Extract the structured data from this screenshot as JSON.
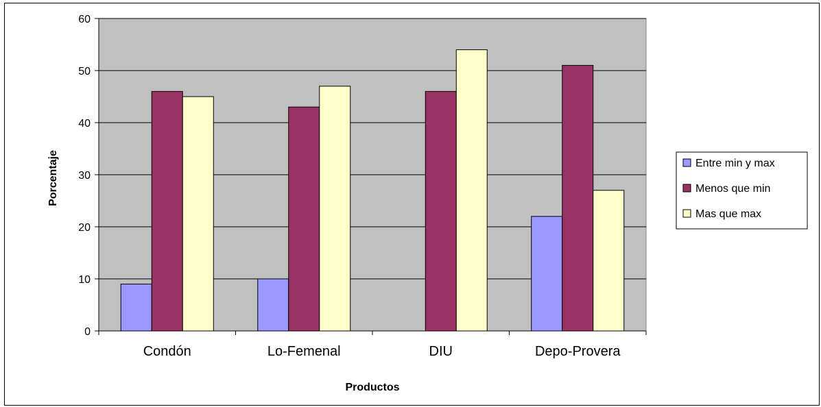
{
  "chart_data": {
    "type": "bar",
    "title": "",
    "xlabel": "Productos",
    "ylabel": "Porcentaje",
    "ylim": [
      0,
      60
    ],
    "yticks": [
      0,
      10,
      20,
      30,
      40,
      50,
      60
    ],
    "grid": true,
    "legend_position": "right",
    "categories": [
      "Condón",
      "Lo-Femenal",
      "DIU",
      "Depo-Provera"
    ],
    "series": [
      {
        "name": "Entre min y max",
        "color": "#9999ff",
        "values": [
          9,
          10,
          0,
          22
        ]
      },
      {
        "name": "Menos que min",
        "color": "#993366",
        "values": [
          46,
          43,
          46,
          51
        ]
      },
      {
        "name": "Mas que max",
        "color": "#ffffcc",
        "values": [
          45,
          47,
          54,
          27
        ]
      }
    ],
    "plot_background": "#c0c0c0"
  }
}
